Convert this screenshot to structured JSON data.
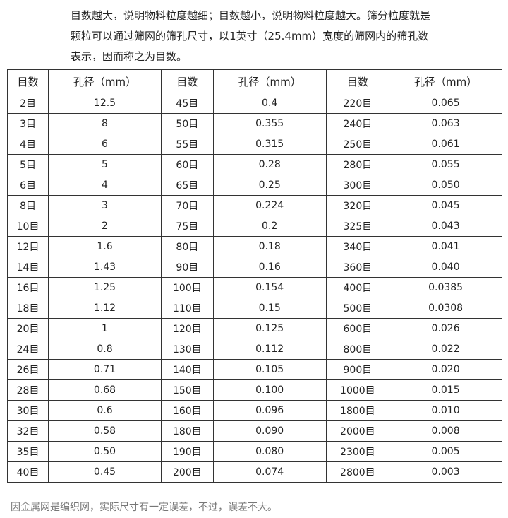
{
  "intro": {
    "lines": [
      "目数越大，说明物料粒度越细；目数越小，说明物料粒度越大。筛分粒度就是",
      "颗粒可以通过筛网的筛孔尺寸，以1英寸（25.4mm）宽度的筛网内的筛孔数",
      "表示，因而称之为目数。"
    ]
  },
  "table": {
    "headers": [
      "目数",
      "孔径（mm）",
      "目数",
      "孔径（mm）",
      "目数",
      "孔径（mm）"
    ],
    "rows": [
      [
        "2目",
        "12.5",
        "45目",
        "0.4",
        "220目",
        "0.065"
      ],
      [
        "3目",
        "8",
        "50目",
        "0.355",
        "240目",
        "0.063"
      ],
      [
        "4目",
        "6",
        "55目",
        "0.315",
        "250目",
        "0.061"
      ],
      [
        "5目",
        "5",
        "60目",
        "0.28",
        "280目",
        "0.055"
      ],
      [
        "6目",
        "4",
        "65目",
        "0.25",
        "300目",
        "0.050"
      ],
      [
        "8目",
        "3",
        "70目",
        "0.224",
        "320目",
        "0.045"
      ],
      [
        "10目",
        "2",
        "75目",
        "0.2",
        "325目",
        "0.043"
      ],
      [
        "12目",
        "1.6",
        "80目",
        "0.18",
        "340目",
        "0.041"
      ],
      [
        "14目",
        "1.43",
        "90目",
        "0.16",
        "360目",
        "0.040"
      ],
      [
        "16目",
        "1.25",
        "100目",
        "0.154",
        "400目",
        "0.0385"
      ],
      [
        "18目",
        "1.12",
        "110目",
        "0.15",
        "500目",
        "0.0308"
      ],
      [
        "20目",
        "1",
        "120目",
        "0.125",
        "600目",
        "0.026"
      ],
      [
        "24目",
        "0.8",
        "130目",
        "0.112",
        "800目",
        "0.022"
      ],
      [
        "26目",
        "0.71",
        "140目",
        "0.105",
        "900目",
        "0.020"
      ],
      [
        "28目",
        "0.68",
        "150目",
        "0.100",
        "1000目",
        "0.015"
      ],
      [
        "30目",
        "0.6",
        "160目",
        "0.096",
        "1800目",
        "0.010"
      ],
      [
        "32目",
        "0.58",
        "180目",
        "0.090",
        "2000目",
        "0.008"
      ],
      [
        "35目",
        "0.50",
        "190目",
        "0.080",
        "2300目",
        "0.005"
      ],
      [
        "40目",
        "0.45",
        "200目",
        "0.074",
        "2800目",
        "0.003"
      ]
    ]
  },
  "footer": {
    "note": "因金属网是编织网，实际尺寸有一定误差，不过，误差不大。"
  }
}
